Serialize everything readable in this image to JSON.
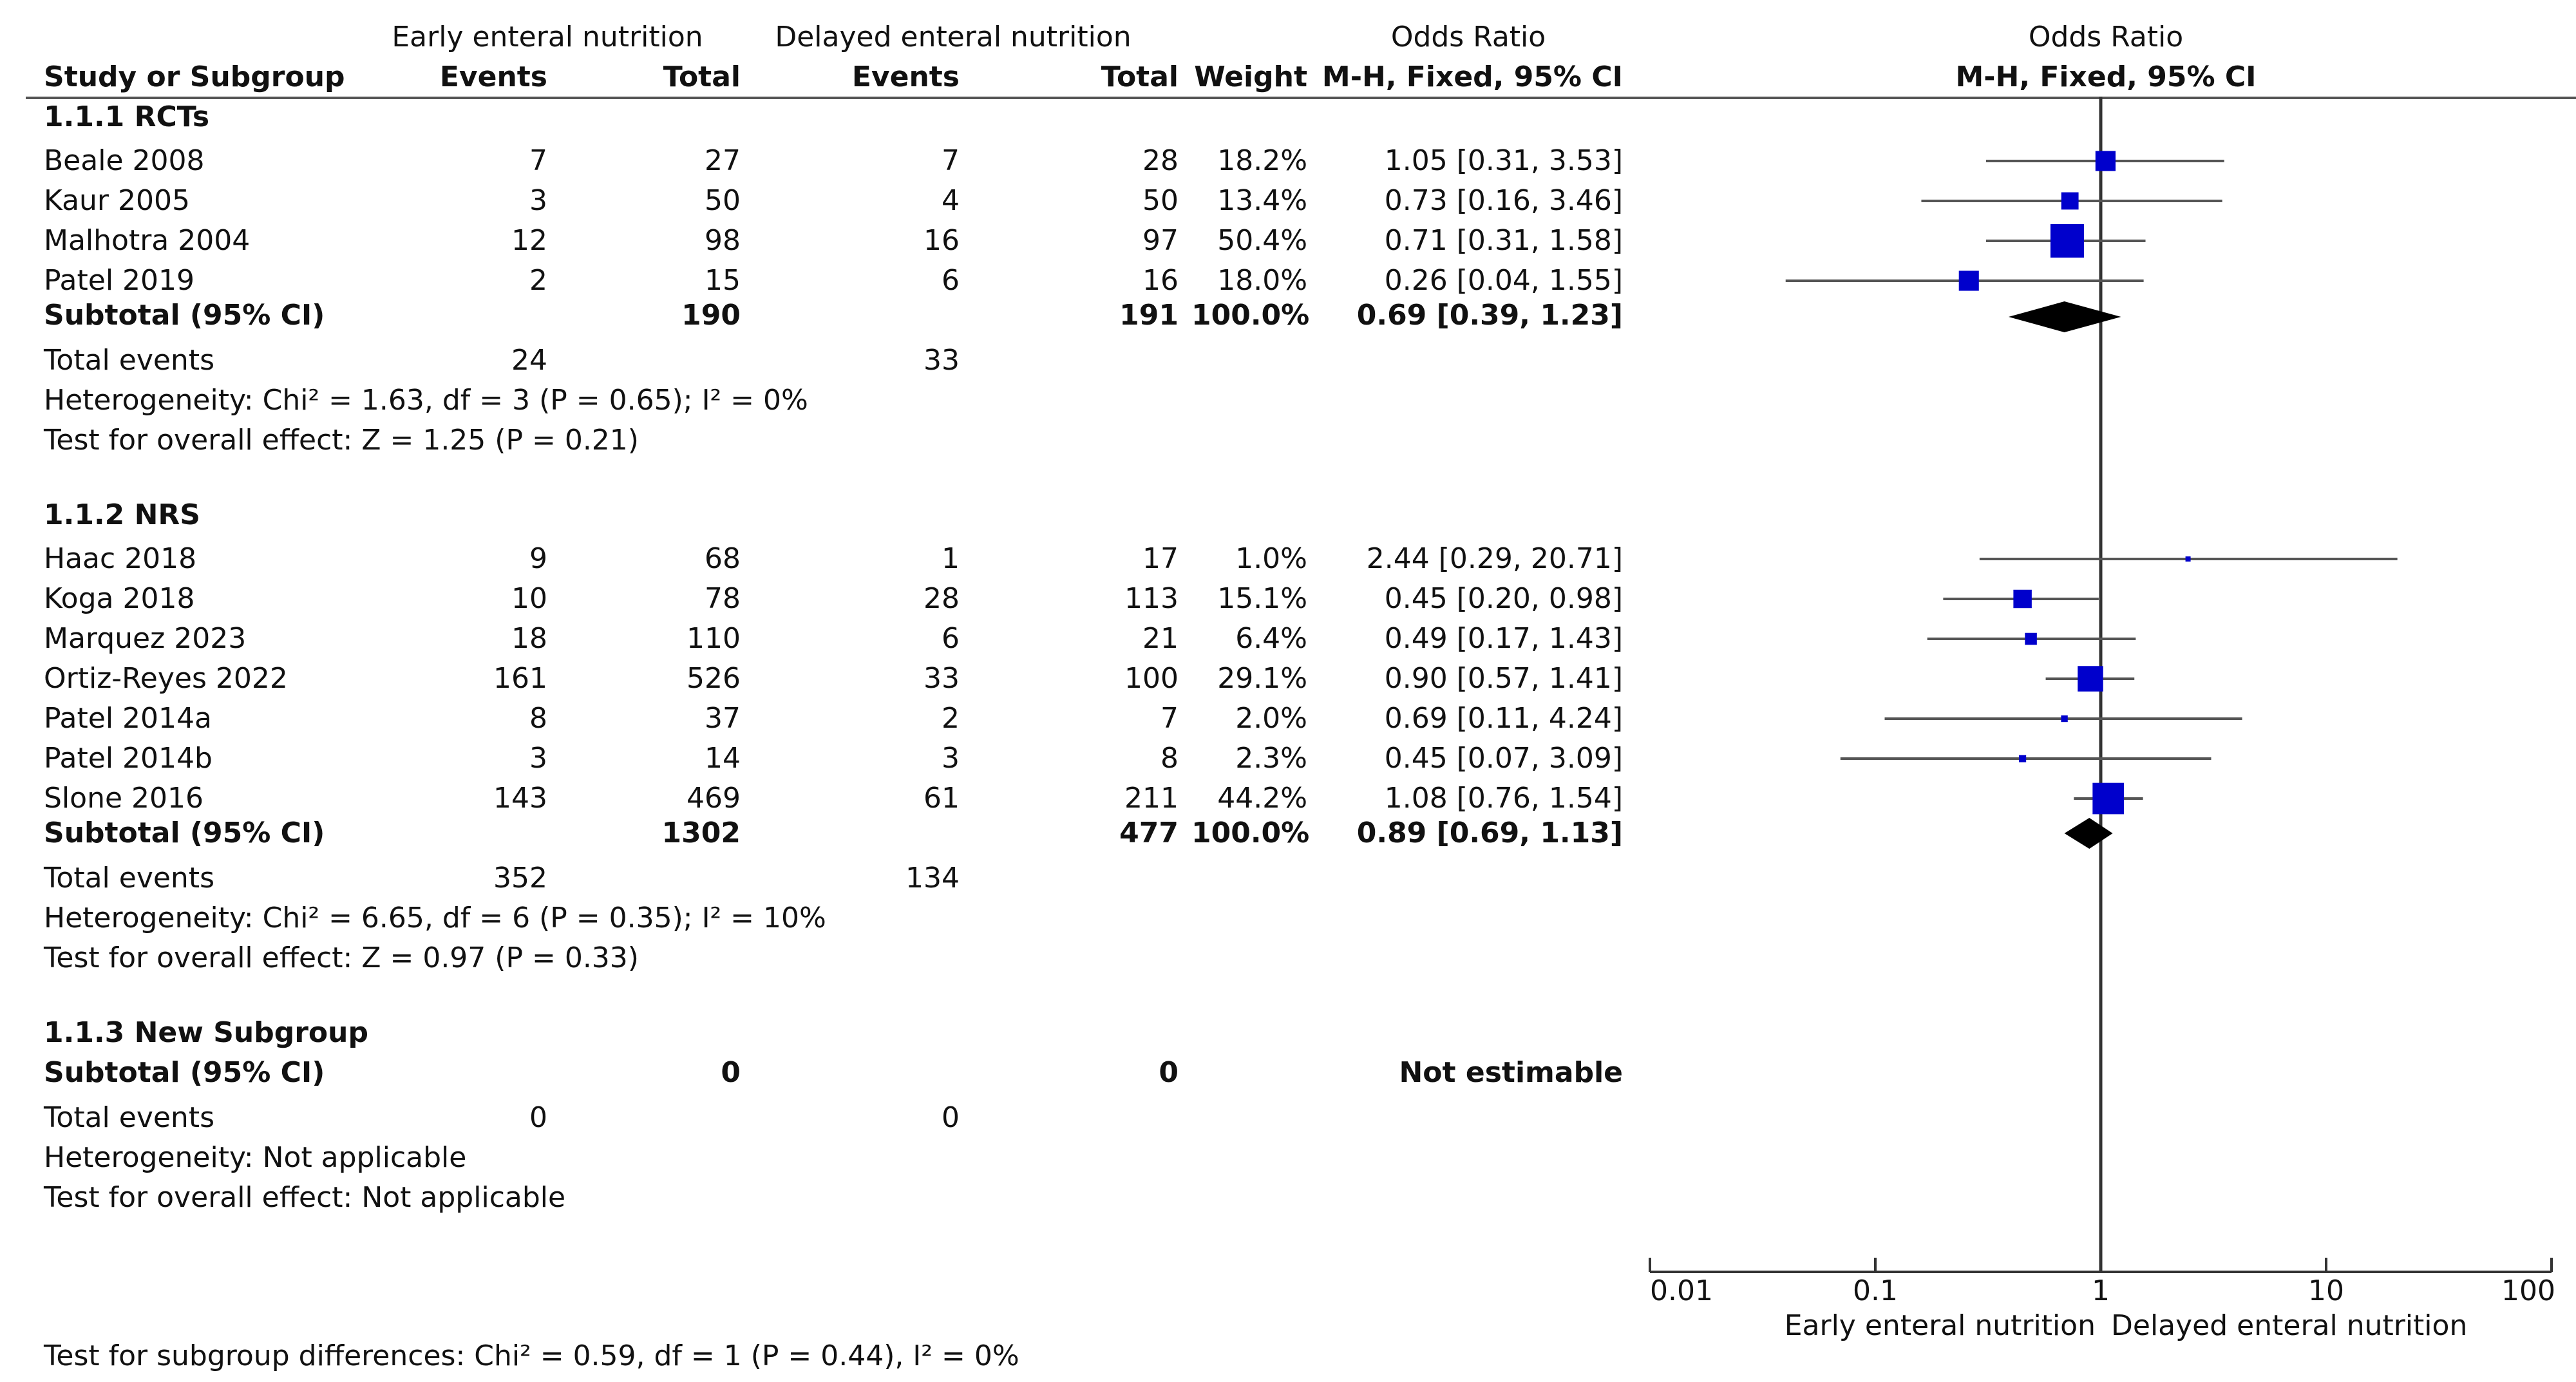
{
  "header": {
    "group1": "Early enteral nutrition",
    "group2": "Delayed enteral nutrition",
    "or_table": "Odds Ratio",
    "or_plot": "Odds Ratio",
    "cols": {
      "study": "Study or Subgroup",
      "events1": "Events",
      "total1": "Total",
      "events2": "Events",
      "total2": "Total",
      "weight": "Weight",
      "method": "M-H, Fixed, 95% CI",
      "method_plot": "M-H, Fixed, 95% CI"
    }
  },
  "subgroups": [
    {
      "title": "1.1.1 RCTs",
      "studies": [
        {
          "name": "Beale 2008",
          "e1": "7",
          "t1": "27",
          "e2": "7",
          "t2": "28",
          "weight": "18.2%",
          "ci": "1.05 [0.31, 3.53]"
        },
        {
          "name": "Kaur 2005",
          "e1": "3",
          "t1": "50",
          "e2": "4",
          "t2": "50",
          "weight": "13.4%",
          "ci": "0.73 [0.16, 3.46]"
        },
        {
          "name": "Malhotra 2004",
          "e1": "12",
          "t1": "98",
          "e2": "16",
          "t2": "97",
          "weight": "50.4%",
          "ci": "0.71 [0.31, 1.58]"
        },
        {
          "name": "Patel 2019",
          "e1": "2",
          "t1": "15",
          "e2": "6",
          "t2": "16",
          "weight": "18.0%",
          "ci": "0.26 [0.04, 1.55]"
        }
      ],
      "subtotal": {
        "label": "Subtotal (95% CI)",
        "t1": "190",
        "t2": "191",
        "weight": "100.0%",
        "ci": "0.69 [0.39, 1.23]"
      },
      "total_events": {
        "label": "Total events",
        "e1": "24",
        "e2": "33"
      },
      "heterogeneity": "Heterogeneity: Chi² = 1.63, df = 3 (P = 0.65); I² = 0%",
      "overall": "Test for overall effect: Z = 1.25 (P = 0.21)"
    },
    {
      "title": "1.1.2 NRS",
      "studies": [
        {
          "name": "Haac 2018",
          "e1": "9",
          "t1": "68",
          "e2": "1",
          "t2": "17",
          "weight": "1.0%",
          "ci": "2.44 [0.29, 20.71]"
        },
        {
          "name": "Koga 2018",
          "e1": "10",
          "t1": "78",
          "e2": "28",
          "t2": "113",
          "weight": "15.1%",
          "ci": "0.45 [0.20, 0.98]"
        },
        {
          "name": "Marquez 2023",
          "e1": "18",
          "t1": "110",
          "e2": "6",
          "t2": "21",
          "weight": "6.4%",
          "ci": "0.49 [0.17, 1.43]"
        },
        {
          "name": "Ortiz-Reyes 2022",
          "e1": "161",
          "t1": "526",
          "e2": "33",
          "t2": "100",
          "weight": "29.1%",
          "ci": "0.90 [0.57, 1.41]"
        },
        {
          "name": "Patel 2014a",
          "e1": "8",
          "t1": "37",
          "e2": "2",
          "t2": "7",
          "weight": "2.0%",
          "ci": "0.69 [0.11, 4.24]"
        },
        {
          "name": "Patel 2014b",
          "e1": "3",
          "t1": "14",
          "e2": "3",
          "t2": "8",
          "weight": "2.3%",
          "ci": "0.45 [0.07, 3.09]"
        },
        {
          "name": "Slone 2016",
          "e1": "143",
          "t1": "469",
          "e2": "61",
          "t2": "211",
          "weight": "44.2%",
          "ci": "1.08 [0.76, 1.54]"
        }
      ],
      "subtotal": {
        "label": "Subtotal (95% CI)",
        "t1": "1302",
        "t2": "477",
        "weight": "100.0%",
        "ci": "0.89 [0.69, 1.13]"
      },
      "total_events": {
        "label": "Total events",
        "e1": "352",
        "e2": "134"
      },
      "heterogeneity": "Heterogeneity: Chi² = 6.65, df = 6 (P = 0.35); I² = 10%",
      "overall": "Test for overall effect: Z = 0.97 (P = 0.33)"
    },
    {
      "title": "1.1.3 New Subgroup",
      "studies": [],
      "subtotal": {
        "label": "Subtotal (95% CI)",
        "t1": "0",
        "t2": "0",
        "weight": "",
        "ci": "Not estimable"
      },
      "total_events": {
        "label": "Total events",
        "e1": "0",
        "e2": "0"
      },
      "heterogeneity": "Heterogeneity: Not applicable",
      "overall": "Test for overall effect: Not applicable"
    }
  ],
  "subgroup_differences": "Test for subgroup differences: Chi² = 0.59, df = 1 (P = 0.44), I² = 0%",
  "colors": {
    "study_marker": "#0000cc",
    "diamond": "#000000",
    "line": "#555555"
  },
  "chart_data": {
    "type": "forest",
    "title": "Odds Ratio M-H, Fixed, 95% CI",
    "scale": "log",
    "xlim": [
      0.01,
      100
    ],
    "ticks": [
      "0.01",
      "0.1",
      "1",
      "10",
      "100"
    ],
    "tick_values": [
      0.01,
      0.1,
      1,
      10,
      100
    ],
    "left_label": "Early enteral nutrition",
    "right_label": "Delayed enteral nutrition",
    "studies": [
      {
        "name": "Beale 2008",
        "or": 1.05,
        "lo": 0.31,
        "hi": 3.53,
        "weight": 18.2
      },
      {
        "name": "Kaur 2005",
        "or": 0.73,
        "lo": 0.16,
        "hi": 3.46,
        "weight": 13.4
      },
      {
        "name": "Malhotra 2004",
        "or": 0.71,
        "lo": 0.31,
        "hi": 1.58,
        "weight": 50.4
      },
      {
        "name": "Patel 2019",
        "or": 0.26,
        "lo": 0.04,
        "hi": 1.55,
        "weight": 18.0
      },
      {
        "name": "Haac 2018",
        "or": 2.44,
        "lo": 0.29,
        "hi": 20.71,
        "weight": 1.0
      },
      {
        "name": "Koga 2018",
        "or": 0.45,
        "lo": 0.2,
        "hi": 0.98,
        "weight": 15.1
      },
      {
        "name": "Marquez 2023",
        "or": 0.49,
        "lo": 0.17,
        "hi": 1.43,
        "weight": 6.4
      },
      {
        "name": "Ortiz-Reyes 2022",
        "or": 0.9,
        "lo": 0.57,
        "hi": 1.41,
        "weight": 29.1
      },
      {
        "name": "Patel 2014a",
        "or": 0.69,
        "lo": 0.11,
        "hi": 4.24,
        "weight": 2.0
      },
      {
        "name": "Patel 2014b",
        "or": 0.45,
        "lo": 0.07,
        "hi": 3.09,
        "weight": 2.3
      },
      {
        "name": "Slone 2016",
        "or": 1.08,
        "lo": 0.76,
        "hi": 1.54,
        "weight": 44.2
      }
    ],
    "subtotals": [
      {
        "name": "1.1.1 RCTs",
        "or": 0.69,
        "lo": 0.39,
        "hi": 1.23
      },
      {
        "name": "1.1.2 NRS",
        "or": 0.89,
        "lo": 0.69,
        "hi": 1.13
      }
    ]
  }
}
